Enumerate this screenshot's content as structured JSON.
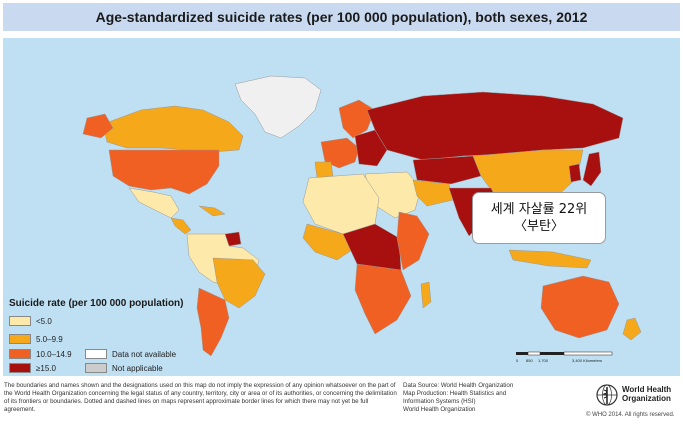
{
  "title": "Age-standardized suicide rates (per 100 000 population), both sexes, 2012",
  "legend": {
    "title": "Suicide rate (per 100 000 population)",
    "items": [
      {
        "label": "<5.0",
        "color": "#fde9a9"
      },
      {
        "label": "5.0–9.9",
        "color": "#f6a81b"
      },
      {
        "label": "10.0–14.9",
        "color": "#f06022"
      },
      {
        "label": "≥15.0",
        "color": "#a80f0f"
      },
      {
        "label": "Data not available",
        "color": "#ffffff"
      },
      {
        "label": "Not applicable",
        "color": "#cccccc"
      }
    ]
  },
  "callout": {
    "line1": "세계 자살률 22위",
    "line2": "〈부탄〉"
  },
  "scale": {
    "ticks": [
      "0",
      "850",
      "1,700",
      "3,400 Kilometers"
    ]
  },
  "disclaimer": "The boundaries and names shown and the designations used on this map do not imply the expression of any opinion whatsoever on the part of the World Health Organization concerning the legal status of any country, territory, city or area or of its authorities, or concerning the delimitation of its frontiers or boundaries. Dotted and dashed lines on maps represent approximate border lines for which there may not yet be full agreement.",
  "source": {
    "line1": "Data Source: World Health Organization",
    "line2": "Map Production: Health Statistics and",
    "line3": "Information Systems (HSI)",
    "line4": "World Health Organization"
  },
  "who": {
    "name1": "World Health",
    "name2": "Organization",
    "copyright": "© WHO 2014. All rights reserved."
  },
  "colors": {
    "ocean": "#bfe0f3",
    "title_bg": "#c9daf0"
  }
}
